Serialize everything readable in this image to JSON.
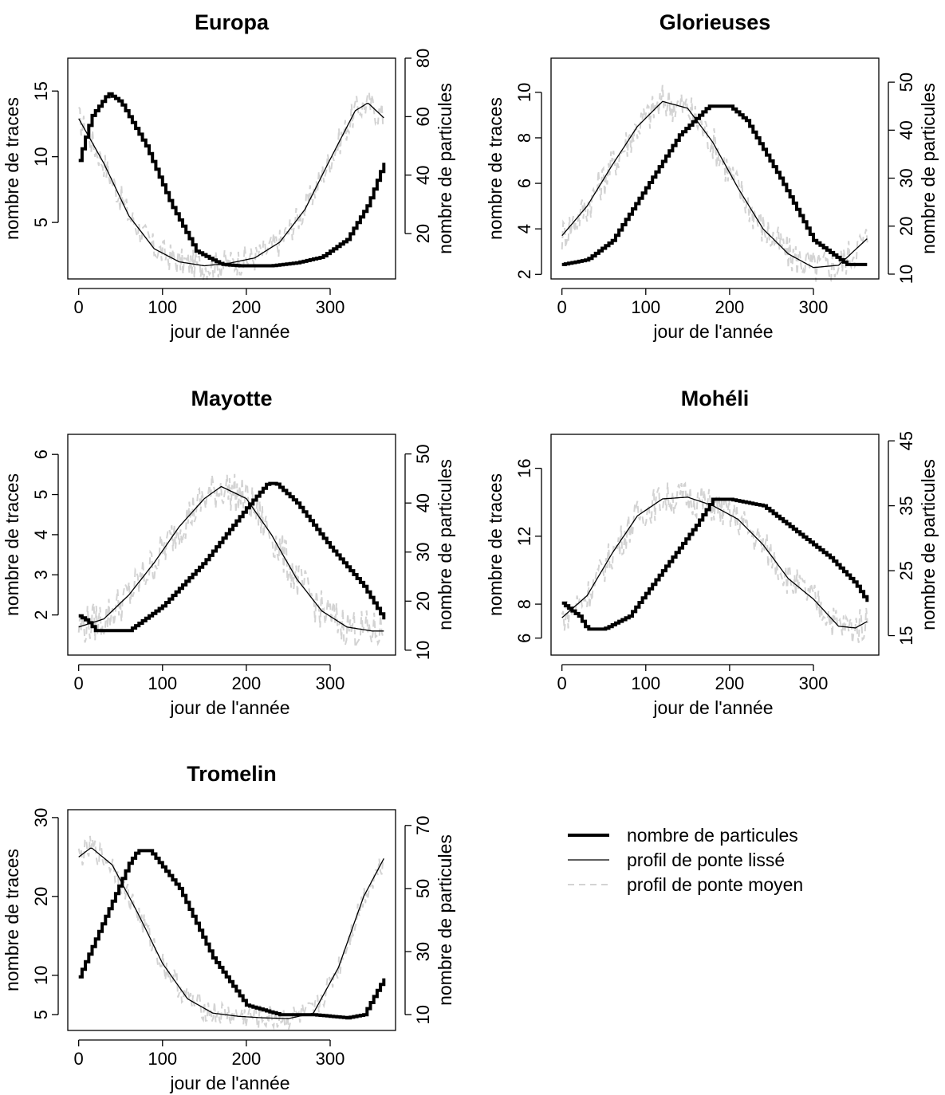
{
  "figure": {
    "legend": {
      "placement": "bottom-right",
      "items": [
        {
          "label": "nombre de particules",
          "style": "thick-solid",
          "color": "#000000"
        },
        {
          "label": "profil de ponte lissé",
          "style": "thin-solid",
          "color": "#000000"
        },
        {
          "label": "profil de ponte moyen",
          "style": "dashed",
          "color": "#d3d3d3"
        }
      ]
    }
  },
  "chart_data": [
    {
      "type": "line",
      "title": "Europa",
      "xlabel": "jour de l'année",
      "ylabel": "nombre de traces",
      "y2label": "nombre de particules",
      "xlim": [
        -13,
        378
      ],
      "ylim": [
        0.7,
        17.5
      ],
      "y2lim": [
        4.5,
        80
      ],
      "xticks": [
        0,
        100,
        200,
        300
      ],
      "yticks": [
        5,
        10,
        15
      ],
      "y2ticks": [
        20,
        40,
        60,
        80
      ],
      "series": [
        {
          "name": "nombre de particules",
          "axis": "right",
          "step": true,
          "x": [
            0,
            15,
            35,
            50,
            80,
            110,
            140,
            170,
            190,
            230,
            260,
            290,
            320,
            345,
            365
          ],
          "values": [
            45,
            60,
            68,
            65,
            50,
            30,
            14,
            9.5,
            9,
            9,
            10,
            12,
            18,
            30,
            45
          ]
        },
        {
          "name": "profil de ponte lissé",
          "axis": "left",
          "x": [
            0,
            30,
            60,
            90,
            120,
            150,
            180,
            210,
            240,
            270,
            300,
            330,
            345,
            365
          ],
          "values": [
            12.9,
            9.5,
            5.5,
            3.0,
            2.0,
            1.7,
            1.9,
            2.3,
            3.5,
            6.0,
            9.8,
            13.5,
            14.1,
            12.9
          ]
        },
        {
          "name": "profil de ponte moyen",
          "axis": "left",
          "noise": 1.1,
          "x": [
            0,
            30,
            60,
            90,
            120,
            150,
            180,
            210,
            240,
            270,
            300,
            330,
            345,
            365
          ],
          "values": [
            12.9,
            9.5,
            5.5,
            3.0,
            2.0,
            1.7,
            1.9,
            2.3,
            3.5,
            6.0,
            9.8,
            13.5,
            14.1,
            12.9
          ]
        }
      ]
    },
    {
      "type": "line",
      "title": "Glorieuses",
      "xlabel": "jour de l'année",
      "ylabel": "nombre de traces",
      "y2label": "nombre de particules",
      "xlim": [
        -13,
        378
      ],
      "ylim": [
        1.8,
        11.5
      ],
      "y2lim": [
        9,
        55
      ],
      "xticks": [
        0,
        100,
        200,
        300
      ],
      "yticks": [
        2,
        4,
        6,
        8,
        10
      ],
      "y2ticks": [
        10,
        20,
        30,
        40,
        50
      ],
      "series": [
        {
          "name": "nombre de particules",
          "axis": "right",
          "step": true,
          "x": [
            0,
            30,
            60,
            100,
            140,
            175,
            200,
            220,
            260,
            300,
            340,
            365
          ],
          "values": [
            12,
            13,
            17,
            28,
            39,
            45,
            45,
            42,
            30,
            17,
            12,
            12
          ]
        },
        {
          "name": "profil de ponte lissé",
          "axis": "left",
          "x": [
            0,
            30,
            60,
            90,
            120,
            150,
            180,
            210,
            240,
            270,
            300,
            330,
            365
          ],
          "values": [
            3.7,
            5.0,
            6.8,
            8.5,
            9.6,
            9.3,
            7.8,
            5.8,
            4.0,
            2.9,
            2.3,
            2.4,
            3.6
          ]
        },
        {
          "name": "profil de ponte moyen",
          "axis": "left",
          "noise": 0.8,
          "x": [
            0,
            30,
            60,
            90,
            120,
            150,
            180,
            210,
            240,
            270,
            300,
            330,
            365
          ],
          "values": [
            3.7,
            5.0,
            6.8,
            8.5,
            9.6,
            9.3,
            7.8,
            5.8,
            4.0,
            2.9,
            2.3,
            2.4,
            3.6
          ]
        }
      ]
    },
    {
      "type": "line",
      "title": "Mayotte",
      "xlabel": "jour de l'année",
      "ylabel": "nombre de traces",
      "y2label": "nombre de particules",
      "xlim": [
        -13,
        378
      ],
      "ylim": [
        1.0,
        6.5
      ],
      "y2lim": [
        9,
        54
      ],
      "xticks": [
        0,
        100,
        200,
        300
      ],
      "yticks": [
        2,
        3,
        4,
        5,
        6
      ],
      "y2ticks": [
        10,
        20,
        30,
        40,
        50
      ],
      "series": [
        {
          "name": "nombre de particules",
          "axis": "right",
          "step": true,
          "x": [
            0,
            10,
            20,
            40,
            60,
            100,
            150,
            200,
            225,
            235,
            260,
            300,
            340,
            365
          ],
          "values": [
            17,
            16,
            14,
            14,
            14,
            19,
            28,
            39,
            44,
            44,
            40,
            31,
            23,
            16
          ]
        },
        {
          "name": "profil de ponte lissé",
          "axis": "left",
          "x": [
            0,
            30,
            60,
            90,
            120,
            150,
            170,
            200,
            230,
            260,
            290,
            320,
            350,
            365
          ],
          "values": [
            1.7,
            1.9,
            2.5,
            3.3,
            4.2,
            4.9,
            5.2,
            4.9,
            4.0,
            2.9,
            2.1,
            1.7,
            1.6,
            1.6
          ]
        },
        {
          "name": "profil de ponte moyen",
          "axis": "left",
          "noise": 0.5,
          "x": [
            0,
            30,
            60,
            90,
            120,
            150,
            170,
            200,
            230,
            260,
            290,
            320,
            350,
            365
          ],
          "values": [
            1.7,
            1.9,
            2.5,
            3.3,
            4.2,
            4.9,
            5.2,
            4.9,
            4.0,
            2.9,
            2.1,
            1.7,
            1.6,
            1.6
          ]
        }
      ]
    },
    {
      "type": "line",
      "title": "Mohéli",
      "xlabel": "jour de l'année",
      "ylabel": "nombre de traces",
      "y2label": "nombre de particules",
      "xlim": [
        -13,
        378
      ],
      "ylim": [
        5.0,
        18.0
      ],
      "y2lim": [
        12,
        46
      ],
      "xticks": [
        0,
        100,
        200,
        300
      ],
      "yticks": [
        6,
        8,
        12,
        16
      ],
      "y2ticks": [
        15,
        25,
        35,
        45
      ],
      "series": [
        {
          "name": "nombre de particules",
          "axis": "right",
          "step": true,
          "x": [
            0,
            20,
            30,
            50,
            80,
            120,
            160,
            180,
            200,
            240,
            280,
            320,
            350,
            365
          ],
          "values": [
            20,
            18,
            16,
            16,
            18,
            25,
            32,
            36,
            36,
            35,
            31,
            27,
            23,
            20
          ]
        },
        {
          "name": "profil de ponte lissé",
          "axis": "left",
          "x": [
            0,
            30,
            60,
            90,
            120,
            150,
            180,
            210,
            240,
            270,
            300,
            330,
            350,
            365
          ],
          "values": [
            7.2,
            8.5,
            11.0,
            13.2,
            14.2,
            14.3,
            13.8,
            13.0,
            11.5,
            9.5,
            8.3,
            6.7,
            6.6,
            7.0
          ]
        },
        {
          "name": "profil de ponte moyen",
          "axis": "left",
          "noise": 1.0,
          "x": [
            0,
            30,
            60,
            90,
            120,
            150,
            180,
            210,
            240,
            270,
            300,
            330,
            350,
            365
          ],
          "values": [
            7.2,
            8.5,
            11.0,
            13.2,
            14.2,
            14.3,
            13.8,
            13.0,
            11.5,
            9.5,
            8.3,
            6.7,
            6.6,
            7.0
          ]
        }
      ]
    },
    {
      "type": "line",
      "title": "Tromelin",
      "xlabel": "jour de l'année",
      "ylabel": "nombre de traces",
      "y2label": "nombre de particules",
      "xlim": [
        -13,
        378
      ],
      "ylim": [
        3.0,
        31.0
      ],
      "y2lim": [
        5,
        75
      ],
      "xticks": [
        0,
        100,
        200,
        300
      ],
      "yticks": [
        5,
        10,
        20,
        30
      ],
      "y2ticks": [
        10,
        30,
        50,
        70
      ],
      "series": [
        {
          "name": "nombre de particules",
          "axis": "right",
          "step": true,
          "x": [
            0,
            30,
            60,
            70,
            85,
            120,
            160,
            200,
            240,
            280,
            320,
            340,
            365
          ],
          "values": [
            22,
            40,
            58,
            62,
            62,
            50,
            28,
            13,
            10,
            10,
            9,
            10,
            22
          ]
        },
        {
          "name": "profil de ponte lissé",
          "axis": "left",
          "x": [
            0,
            15,
            40,
            70,
            100,
            130,
            160,
            190,
            220,
            250,
            280,
            310,
            340,
            365
          ],
          "values": [
            25.0,
            26.2,
            24.0,
            18.0,
            11.5,
            7.0,
            5.2,
            4.8,
            4.6,
            4.5,
            5.2,
            11.0,
            20.0,
            25.0
          ]
        },
        {
          "name": "profil de ponte moyen",
          "axis": "left",
          "noise": 1.6,
          "x": [
            0,
            15,
            40,
            70,
            100,
            130,
            160,
            190,
            220,
            250,
            280,
            310,
            340,
            365
          ],
          "values": [
            25.0,
            26.2,
            24.0,
            18.0,
            11.5,
            7.0,
            5.2,
            4.8,
            4.6,
            4.5,
            5.2,
            11.0,
            20.0,
            25.0
          ]
        }
      ]
    }
  ]
}
